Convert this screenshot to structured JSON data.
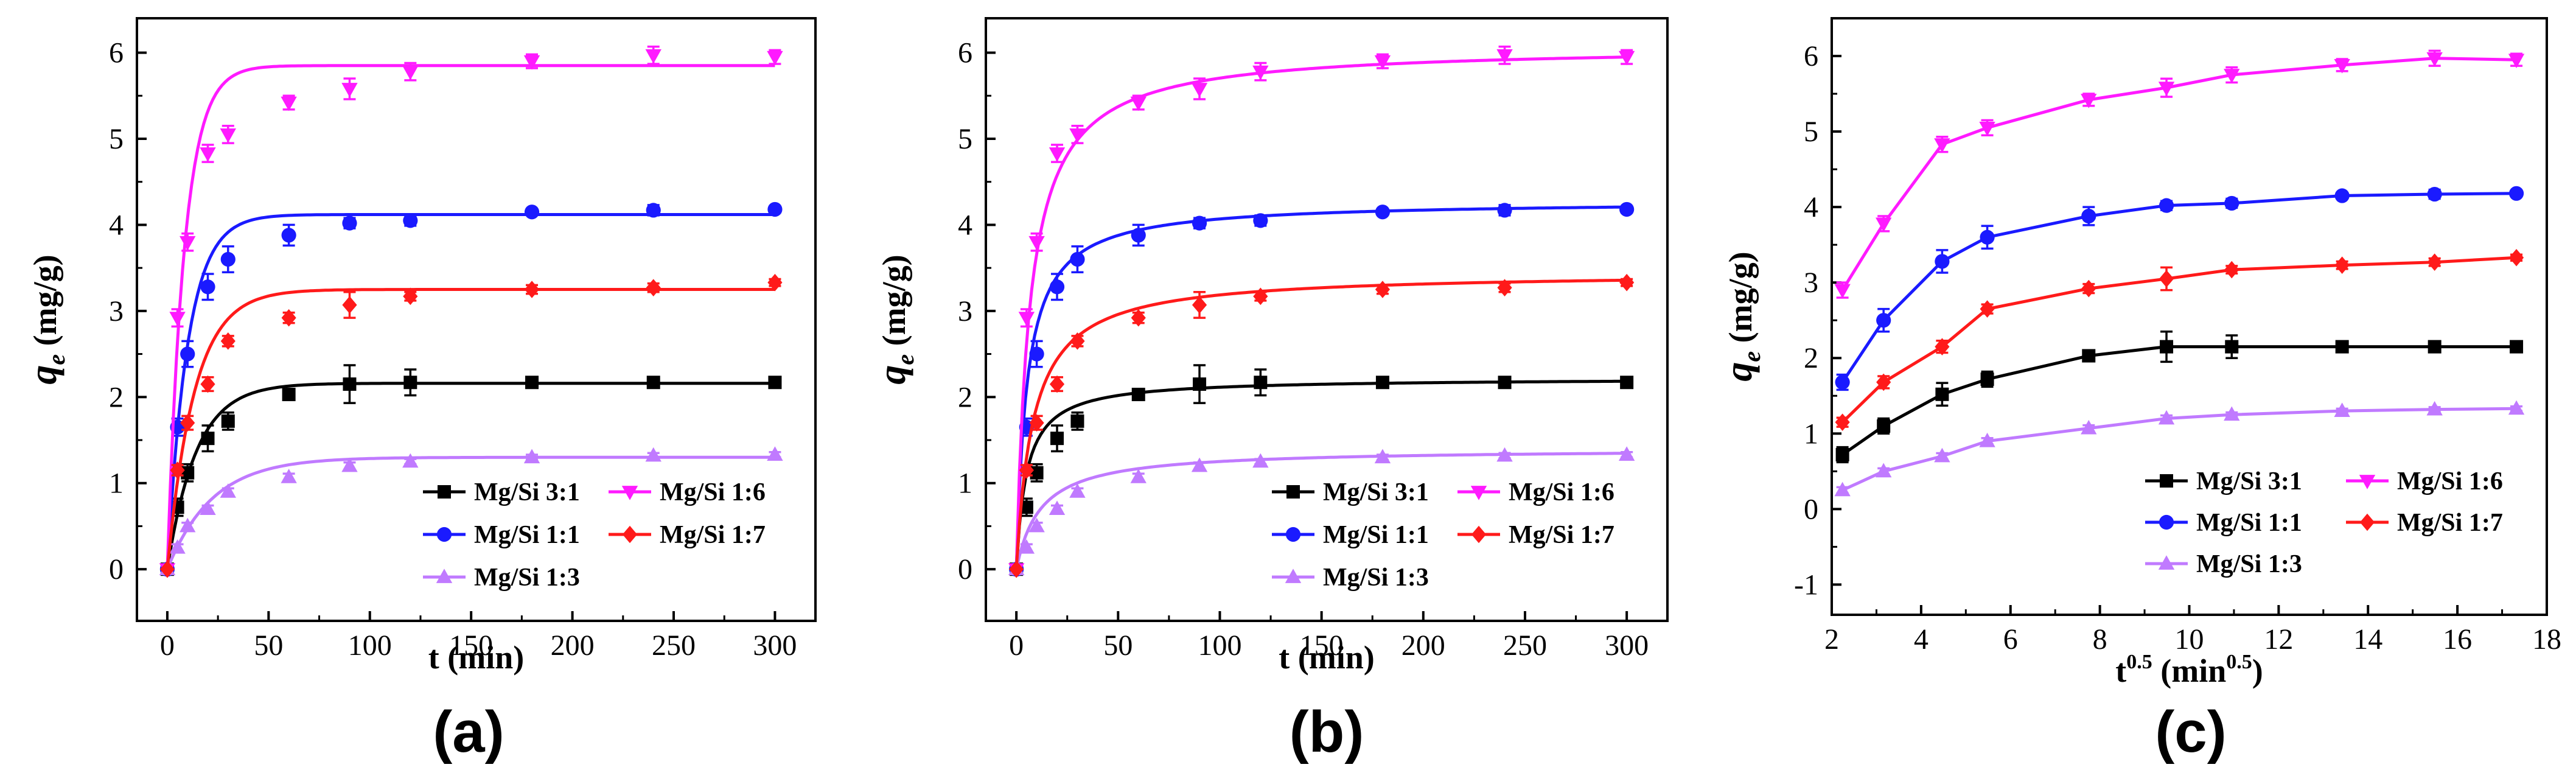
{
  "figure": {
    "panel_labels": [
      "(a)",
      "(b)",
      "(c)"
    ],
    "ylabel_main": "q",
    "ylabel_sub": "e",
    "ylabel_unit": " (mg/g)",
    "xlabel_ab": "t (min)",
    "xlabel_c_base": "t",
    "xlabel_c_sup": "0.5",
    "xlabel_c_unit_open": " (min",
    "xlabel_c_unit_sup": "0.5",
    "xlabel_c_unit_close": ")"
  },
  "series_styles": [
    {
      "name": "Mg/Si 3:1",
      "color": "#000000",
      "marker": "square"
    },
    {
      "name": "Mg/Si 1:1",
      "color": "#1a1aff",
      "marker": "circle"
    },
    {
      "name": "Mg/Si 1:3",
      "color": "#c07aff",
      "marker": "triangle-up"
    },
    {
      "name": "Mg/Si 1:6",
      "color": "#ff1aff",
      "marker": "triangle-down"
    },
    {
      "name": "Mg/Si 1:7",
      "color": "#ff1a1a",
      "marker": "diamond"
    }
  ],
  "chart_data": [
    {
      "type": "scatter",
      "panel": "(a)",
      "xlabel": "t (min)",
      "ylabel": "q_e (mg/g)",
      "xlim": [
        -15,
        320
      ],
      "ylim": [
        -0.6,
        6.4
      ],
      "xticks": [
        0,
        50,
        100,
        150,
        200,
        250,
        300
      ],
      "yticks": [
        0,
        1,
        2,
        3,
        4,
        5,
        6
      ],
      "fit": "pfo",
      "x": [
        0,
        5,
        10,
        20,
        30,
        60,
        90,
        120,
        180,
        240,
        300
      ],
      "series": [
        {
          "name": "Mg/Si 3:1",
          "values": [
            0,
            0.72,
            1.12,
            1.52,
            1.72,
            2.03,
            2.15,
            2.17,
            2.17,
            2.17,
            2.17
          ],
          "errors": [
            0,
            0.1,
            0.1,
            0.15,
            0.1,
            0.05,
            0.22,
            0.15,
            0.03,
            0.03,
            0.03
          ],
          "fit_params": [
            2.16,
            0.07
          ]
        },
        {
          "name": "Mg/Si 1:1",
          "values": [
            0,
            1.65,
            2.5,
            3.28,
            3.6,
            3.88,
            4.02,
            4.05,
            4.15,
            4.17,
            4.18
          ],
          "errors": [
            0,
            0.1,
            0.15,
            0.15,
            0.15,
            0.12,
            0.06,
            0.06,
            0.03,
            0.06,
            0.04
          ],
          "fit_params": [
            4.12,
            0.1
          ]
        },
        {
          "name": "Mg/Si 1:3",
          "values": [
            0,
            0.25,
            0.5,
            0.7,
            0.9,
            1.07,
            1.2,
            1.25,
            1.3,
            1.32,
            1.33
          ],
          "errors": [
            0,
            0.04,
            0.04,
            0.04,
            0.04,
            0.04,
            0.04,
            0.03,
            0.03,
            0.03,
            0.03
          ],
          "fit_params": [
            1.3,
            0.045
          ]
        },
        {
          "name": "Mg/Si 1:6",
          "values": [
            0,
            2.92,
            3.8,
            4.83,
            5.05,
            5.42,
            5.58,
            5.78,
            5.9,
            5.97,
            5.95
          ],
          "errors": [
            0,
            0.1,
            0.1,
            0.1,
            0.1,
            0.08,
            0.12,
            0.1,
            0.08,
            0.1,
            0.08
          ],
          "fit_params": [
            5.85,
            0.12
          ]
        },
        {
          "name": "Mg/Si 1:7",
          "values": [
            0,
            1.15,
            1.7,
            2.15,
            2.65,
            2.92,
            3.07,
            3.17,
            3.25,
            3.27,
            3.33
          ],
          "errors": [
            0,
            0.06,
            0.08,
            0.08,
            0.06,
            0.06,
            0.15,
            0.05,
            0.05,
            0.05,
            0.04
          ],
          "fit_params": [
            3.25,
            0.075
          ]
        }
      ],
      "legend": "lower-right"
    },
    {
      "type": "scatter",
      "panel": "(b)",
      "xlabel": "t (min)",
      "ylabel": "q_e (mg/g)",
      "xlim": [
        -15,
        320
      ],
      "ylim": [
        -0.6,
        6.4
      ],
      "xticks": [
        0,
        50,
        100,
        150,
        200,
        250,
        300
      ],
      "yticks": [
        0,
        1,
        2,
        3,
        4,
        5,
        6
      ],
      "fit": "pso",
      "x": [
        0,
        5,
        10,
        20,
        30,
        60,
        90,
        120,
        180,
        240,
        300
      ],
      "series": [
        {
          "name": "Mg/Si 3:1",
          "values": [
            0,
            0.72,
            1.12,
            1.52,
            1.72,
            2.03,
            2.15,
            2.17,
            2.17,
            2.17,
            2.17
          ],
          "errors": [
            0,
            0.1,
            0.1,
            0.15,
            0.1,
            0.05,
            0.22,
            0.15,
            0.03,
            0.03,
            0.03
          ],
          "fit_params": [
            2.22,
            0.09
          ]
        },
        {
          "name": "Mg/Si 1:1",
          "values": [
            0,
            1.65,
            2.5,
            3.28,
            3.6,
            3.88,
            4.02,
            4.05,
            4.15,
            4.17,
            4.18
          ],
          "errors": [
            0,
            0.1,
            0.15,
            0.15,
            0.15,
            0.12,
            0.06,
            0.06,
            0.03,
            0.06,
            0.04
          ],
          "fit_params": [
            4.28,
            0.045
          ]
        },
        {
          "name": "Mg/Si 1:3",
          "values": [
            0,
            0.25,
            0.5,
            0.7,
            0.9,
            1.07,
            1.2,
            1.25,
            1.3,
            1.32,
            1.33
          ],
          "errors": [
            0,
            0.04,
            0.04,
            0.04,
            0.04,
            0.04,
            0.04,
            0.03,
            0.03,
            0.03,
            0.03
          ],
          "fit_params": [
            1.4,
            0.06
          ]
        },
        {
          "name": "Mg/Si 1:6",
          "values": [
            0,
            2.92,
            3.8,
            4.83,
            5.05,
            5.42,
            5.58,
            5.78,
            5.9,
            5.97,
            5.95
          ],
          "errors": [
            0,
            0.1,
            0.1,
            0.1,
            0.1,
            0.08,
            0.12,
            0.1,
            0.08,
            0.1,
            0.08
          ],
          "fit_params": [
            6.08,
            0.025
          ]
        },
        {
          "name": "Mg/Si 1:7",
          "values": [
            0,
            1.15,
            1.7,
            2.15,
            2.65,
            2.92,
            3.07,
            3.17,
            3.25,
            3.27,
            3.33
          ],
          "errors": [
            0,
            0.06,
            0.08,
            0.08,
            0.06,
            0.06,
            0.15,
            0.05,
            0.05,
            0.05,
            0.04
          ],
          "fit_params": [
            3.45,
            0.035
          ]
        }
      ],
      "legend": "lower-right"
    },
    {
      "type": "line",
      "panel": "(c)",
      "xlabel": "t^0.5 (min^0.5)",
      "ylabel": "q_e (mg/g)",
      "xlim": [
        2,
        18
      ],
      "ylim": [
        -1.4,
        6.5
      ],
      "xticks": [
        2,
        4,
        6,
        8,
        10,
        12,
        14,
        16,
        18
      ],
      "yticks": [
        -1,
        0,
        1,
        2,
        3,
        4,
        5,
        6
      ],
      "x": [
        2.24,
        3.16,
        4.47,
        5.48,
        7.75,
        9.49,
        10.95,
        13.42,
        15.49,
        17.32
      ],
      "series": [
        {
          "name": "Mg/Si 3:1",
          "values": [
            0.72,
            1.1,
            1.52,
            1.72,
            2.03,
            2.15,
            2.15,
            2.15,
            2.15,
            2.15
          ],
          "errors": [
            0.1,
            0.1,
            0.15,
            0.1,
            0.05,
            0.2,
            0.15,
            0.03,
            0.03,
            0.03
          ]
        },
        {
          "name": "Mg/Si 1:1",
          "values": [
            1.68,
            2.5,
            3.28,
            3.6,
            3.88,
            4.02,
            4.05,
            4.15,
            4.17,
            4.18
          ],
          "errors": [
            0.1,
            0.15,
            0.15,
            0.15,
            0.12,
            0.06,
            0.06,
            0.03,
            0.06,
            0.04
          ]
        },
        {
          "name": "Mg/Si 1:3",
          "values": [
            0.25,
            0.5,
            0.7,
            0.9,
            1.07,
            1.2,
            1.25,
            1.3,
            1.32,
            1.33
          ],
          "errors": [
            0.04,
            0.04,
            0.04,
            0.04,
            0.04,
            0.04,
            0.03,
            0.03,
            0.03,
            0.03
          ]
        },
        {
          "name": "Mg/Si 1:6",
          "values": [
            2.9,
            3.78,
            4.83,
            5.05,
            5.42,
            5.58,
            5.75,
            5.88,
            5.97,
            5.95
          ],
          "errors": [
            0.1,
            0.1,
            0.1,
            0.1,
            0.08,
            0.12,
            0.1,
            0.08,
            0.1,
            0.08
          ]
        },
        {
          "name": "Mg/Si 1:7",
          "values": [
            1.15,
            1.68,
            2.15,
            2.65,
            2.92,
            3.05,
            3.17,
            3.23,
            3.27,
            3.33
          ],
          "errors": [
            0.06,
            0.08,
            0.08,
            0.06,
            0.06,
            0.15,
            0.05,
            0.05,
            0.05,
            0.04
          ]
        }
      ],
      "legend": "lower-right"
    }
  ]
}
